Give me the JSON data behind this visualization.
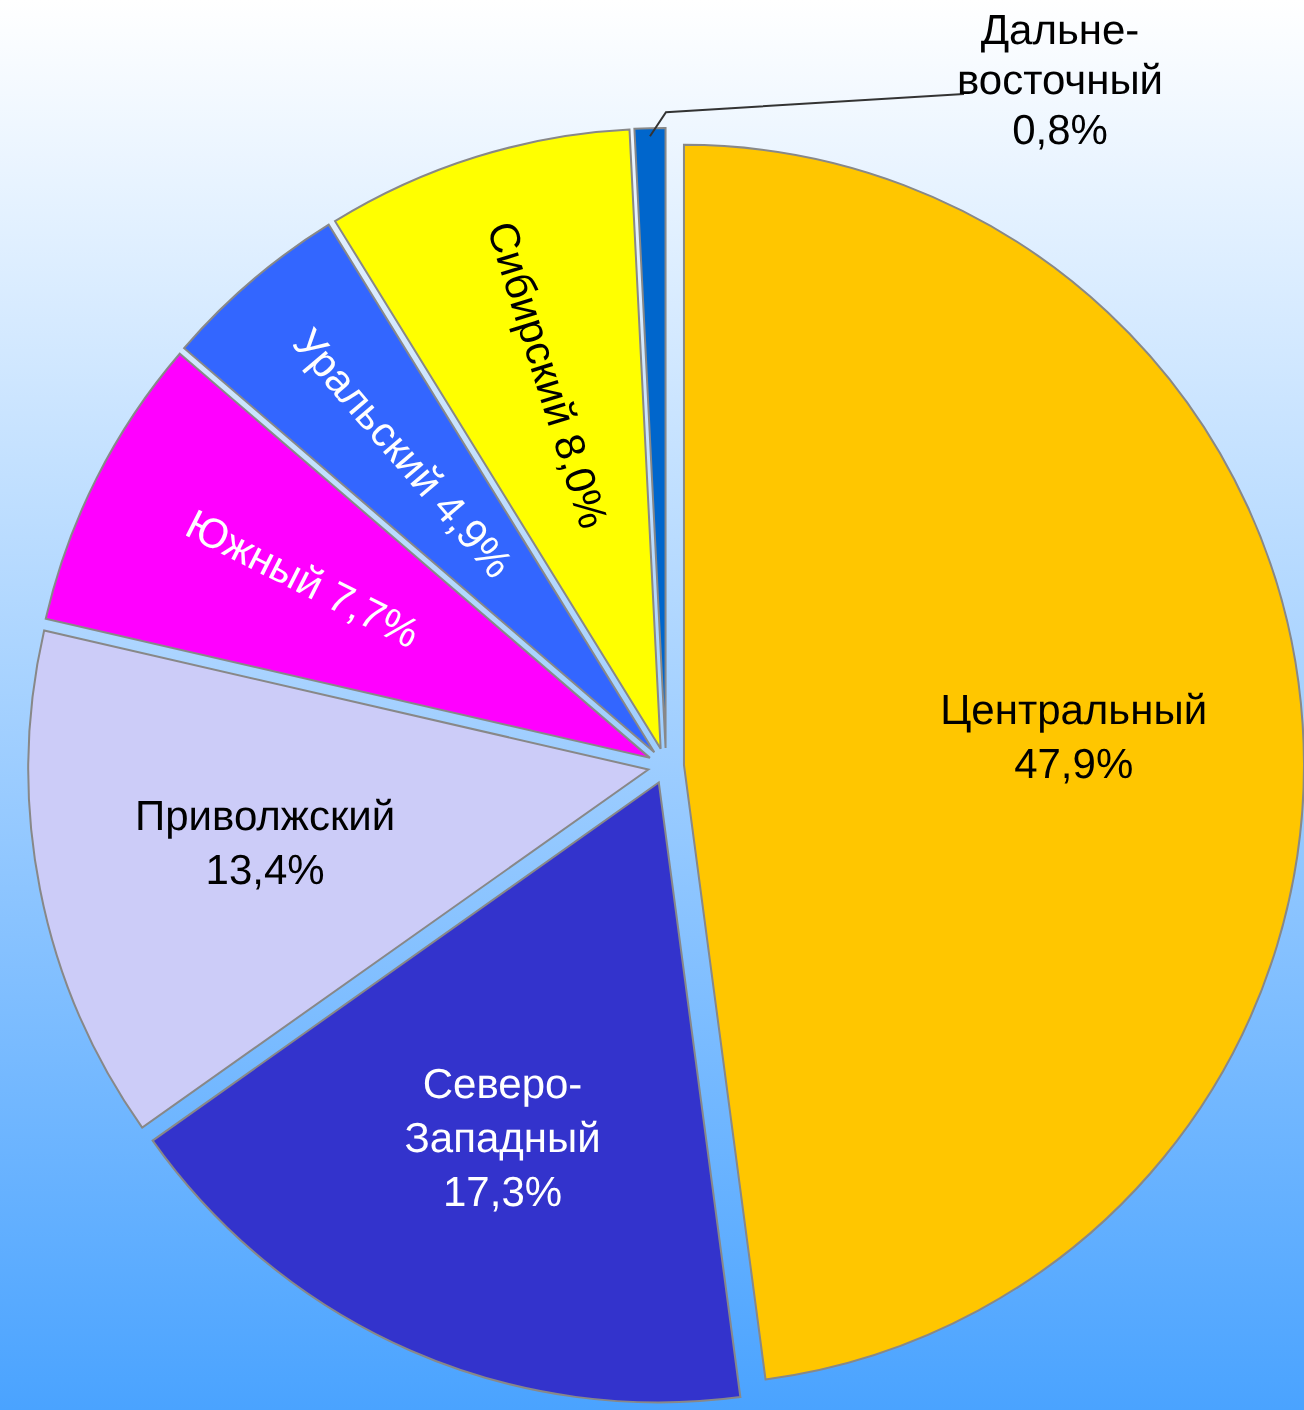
{
  "chart_data": {
    "type": "pie",
    "categories": [
      "Центральный",
      "Северо-Западный",
      "Приволжский",
      "Южный",
      "Уральский",
      "Сибирский",
      "Дальне-восточный"
    ],
    "values": [
      47.9,
      17.3,
      13.4,
      7.7,
      4.9,
      8.0,
      0.8
    ],
    "colors": [
      "#ffc600",
      "#3333cc",
      "#ccccf8",
      "#ff00ff",
      "#3366ff",
      "#ffff00",
      "#0066cc"
    ],
    "value_labels": [
      "47,9%",
      "17,3%",
      "13,4%",
      "7,7%",
      "4,9%",
      "8,0%",
      "0,8%"
    ]
  }
}
